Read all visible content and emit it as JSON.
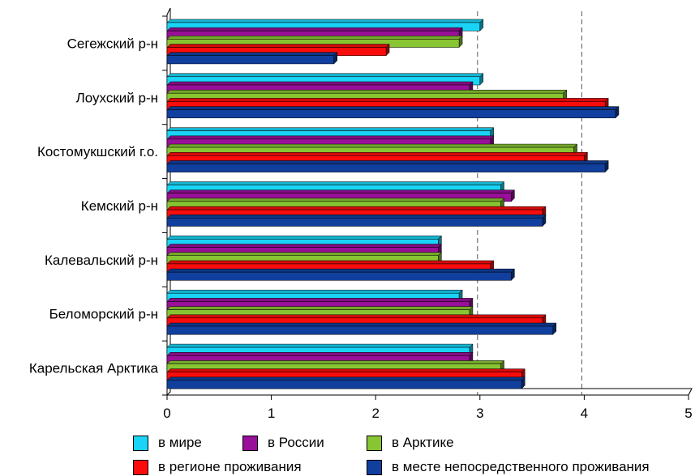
{
  "chart_data": {
    "type": "bar",
    "orientation": "horizontal",
    "categories": [
      "Сегежский р-н",
      "Лоухский р-н",
      "Костомукшский г.о.",
      "Кемский р-н",
      "Калевальский р-н",
      "Беломорский р-н",
      "Карельская Арктика"
    ],
    "series": [
      {
        "name": "в мире",
        "color": "#19d4f6",
        "values": [
          3.0,
          3.0,
          3.1,
          3.2,
          2.6,
          2.8,
          2.9
        ]
      },
      {
        "name": "в России",
        "color": "#990f99",
        "values": [
          2.8,
          2.9,
          3.1,
          3.3,
          2.6,
          2.9,
          2.9
        ]
      },
      {
        "name": "в Арктике",
        "color": "#88c532",
        "values": [
          2.8,
          3.8,
          3.9,
          3.2,
          2.6,
          2.9,
          3.2
        ]
      },
      {
        "name": "в регионе проживания",
        "color": "#fa0c0c",
        "values": [
          2.1,
          4.2,
          4.0,
          3.6,
          3.1,
          3.6,
          3.4
        ]
      },
      {
        "name": "в месте непосредственного проживания",
        "color": "#113f9e",
        "values": [
          1.6,
          4.3,
          4.2,
          3.6,
          3.3,
          3.7,
          3.4
        ]
      }
    ],
    "xlim": [
      0,
      5
    ],
    "xticks": [
      "0",
      "1",
      "2",
      "3",
      "4",
      "5"
    ],
    "gridlines": [
      3,
      4
    ],
    "legend_position": "bottom"
  }
}
